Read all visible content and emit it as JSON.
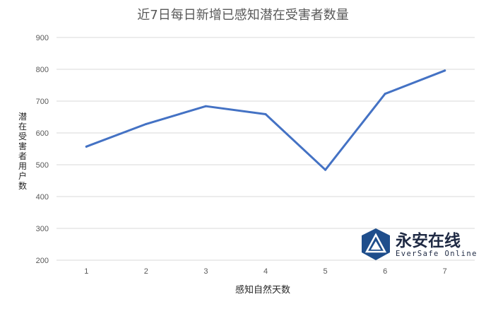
{
  "chart_data": {
    "type": "line",
    "title": "近7日每日新增已感知潜在受害者数量",
    "xlabel": "感知自然天数",
    "ylabel": "潜在受害者用户数",
    "x": [
      1,
      2,
      3,
      4,
      5,
      6,
      7
    ],
    "x_tick_labels": [
      "1",
      "2",
      "3",
      "4",
      "5",
      "6",
      "7"
    ],
    "series": [
      {
        "values": [
          557,
          628,
          684,
          659,
          484,
          723,
          796
        ],
        "color": "#4472c4"
      }
    ],
    "ylim": [
      200,
      900
    ],
    "y_ticks": [
      200,
      300,
      400,
      500,
      600,
      700,
      800,
      900
    ],
    "y_tick_labels": [
      "200",
      "300",
      "400",
      "500",
      "600",
      "700",
      "800",
      "900"
    ],
    "grid": true,
    "legend": "none"
  },
  "watermark": {
    "name": "永安在线",
    "subtitle": "EverSafe Online"
  }
}
